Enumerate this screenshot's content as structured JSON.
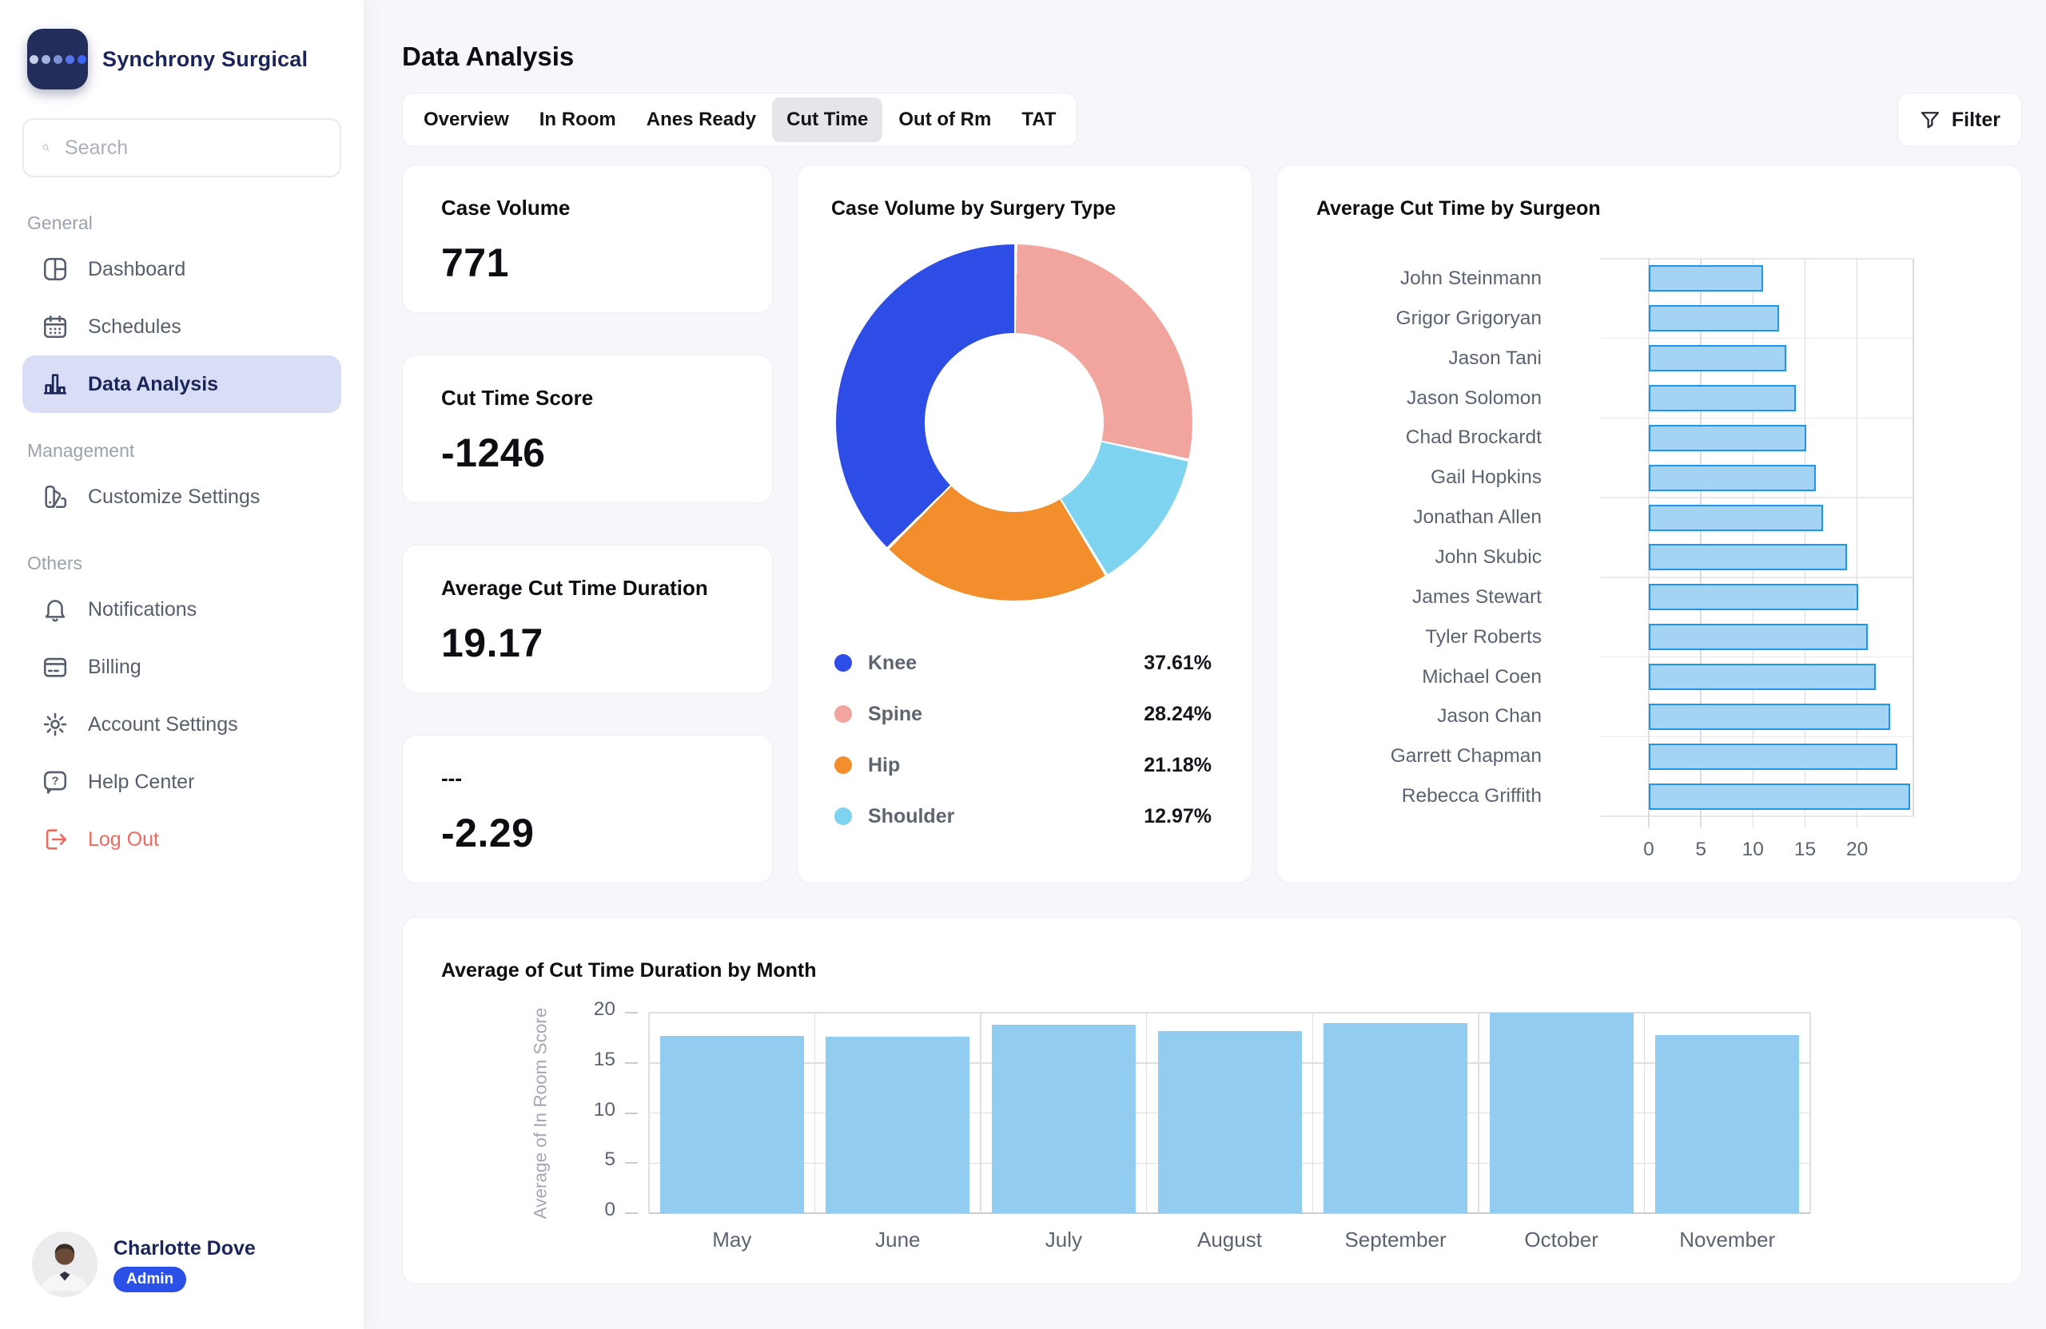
{
  "brand": {
    "name": "Synchrony Surgical"
  },
  "search": {
    "placeholder": "Search"
  },
  "colors": {
    "navy": "#1b2559",
    "active_item_bg": "#d9def6",
    "logout_red": "#ef6a5e",
    "admin_badge_blue": "#2b50e8",
    "page_bg": "#f6f7fa",
    "tab_active_bg": "#e4e6ea",
    "logo_dots": [
      "#c9d1ea",
      "#a3b1e0",
      "#7d91d6",
      "#5674ea",
      "#3c64f4"
    ]
  },
  "sidebar": {
    "sections": [
      {
        "label": "General",
        "items": [
          {
            "label": "Dashboard",
            "icon": "dashboard-icon",
            "active": false
          },
          {
            "label": "Schedules",
            "icon": "calendar-icon",
            "active": false
          },
          {
            "label": "Data Analysis",
            "icon": "bar-chart-icon",
            "active": true
          }
        ]
      },
      {
        "label": "Management",
        "items": [
          {
            "label": "Customize Settings",
            "icon": "palette-icon",
            "active": false
          }
        ]
      },
      {
        "label": "Others",
        "items": [
          {
            "label": "Notifications",
            "icon": "bell-icon",
            "active": false
          },
          {
            "label": "Billing",
            "icon": "credit-card-icon",
            "active": false
          },
          {
            "label": "Account Settings",
            "icon": "gear-icon",
            "active": false
          },
          {
            "label": "Help Center",
            "icon": "help-icon",
            "active": false
          },
          {
            "label": "Log Out",
            "icon": "logout-icon",
            "active": false,
            "danger": true
          }
        ]
      }
    ],
    "profile": {
      "name": "Charlotte Dove",
      "role": "Admin"
    }
  },
  "header": {
    "title": "Data Analysis",
    "filter_label": "Filter"
  },
  "tabs": {
    "active": "Cut Time",
    "items": [
      {
        "label": "Overview",
        "active": false
      },
      {
        "label": "In Room",
        "active": false
      },
      {
        "label": "Anes Ready",
        "active": false
      },
      {
        "label": "Cut Time",
        "active": true
      },
      {
        "label": "Out of Rm",
        "active": false
      },
      {
        "label": "TAT",
        "active": false
      }
    ]
  },
  "stat_cards": [
    {
      "label": "Case Volume",
      "value": "771"
    },
    {
      "label": "Cut Time Score",
      "value": "-1246"
    },
    {
      "label": "Average Cut Time Duration",
      "value": "19.17"
    },
    {
      "label": "---",
      "value": "-2.29"
    }
  ],
  "chart_data": [
    {
      "type": "pie",
      "subtype": "donut",
      "title": "Case Volume by Surgery Type",
      "legend_position": "bottom",
      "slices": [
        {
          "label": "Knee",
          "pct": 37.61,
          "color": "#2e4ce6"
        },
        {
          "label": "Spine",
          "pct": 28.24,
          "color": "#f2a59e"
        },
        {
          "label": "Hip",
          "pct": 21.18,
          "color": "#f28e2b"
        },
        {
          "label": "Shoulder",
          "pct": 12.97,
          "color": "#7ed3f0"
        }
      ],
      "clockwise_order": [
        "Spine",
        "Shoulder",
        "Hip",
        "Knee"
      ]
    },
    {
      "type": "bar",
      "orientation": "horizontal",
      "title": "Average Cut Time by Surgeon",
      "categories": [
        "John Steinmann",
        "Grigor Grigoryan",
        "Jason Tani",
        "Jason Solomon",
        "Chad Brockardt",
        "Gail Hopkins",
        "Jonathan Allen",
        "John Skubic",
        "James Stewart",
        "Tyler Roberts",
        "Michael Coen",
        "Jason Chan",
        "Garrett Chapman",
        "Rebecca Griffith"
      ],
      "values": [
        11.0,
        12.5,
        13.2,
        14.1,
        15.1,
        16.0,
        16.7,
        19.0,
        20.1,
        21.0,
        21.8,
        23.2,
        23.9,
        25.1
      ],
      "xlim": [
        0,
        25.4
      ],
      "xticks": [
        0,
        5,
        10,
        15,
        20
      ],
      "grid": true,
      "bar_fill": "#a5d3f3",
      "bar_stroke": "#1e96ee"
    },
    {
      "type": "bar",
      "orientation": "vertical",
      "title": "Average of Cut Time Duration by Month",
      "ylabel": "Average of In Room Score",
      "categories": [
        "May",
        "June",
        "July",
        "August",
        "September",
        "October",
        "November"
      ],
      "values": [
        17.7,
        17.6,
        18.8,
        18.2,
        19.0,
        20.0,
        17.8
      ],
      "ylim": [
        0,
        20
      ],
      "yticks": [
        0,
        5,
        10,
        15,
        20
      ],
      "grid": true,
      "bar_fill": "#93ccf1"
    }
  ]
}
